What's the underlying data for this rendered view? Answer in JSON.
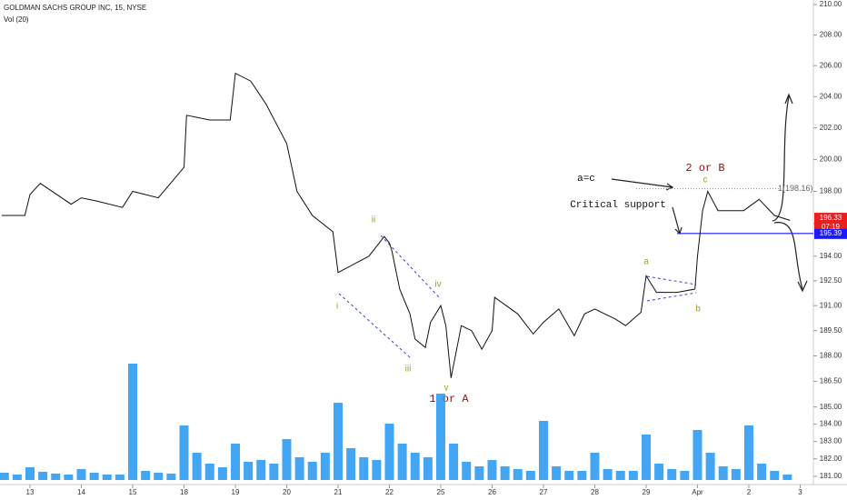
{
  "chart_data": {
    "type": "line",
    "title": "GOLDMAN SACHS GROUP INC, 15, NYSE",
    "indicator": "Vol (20)",
    "log_scale": true,
    "color": "#111111",
    "x": [
      -0.55,
      -0.1,
      0,
      0.2,
      0.8,
      1,
      1.3,
      1.8,
      2,
      2.5,
      3,
      3.05,
      3.5,
      3.9,
      4,
      4.3,
      4.6,
      5,
      5.2,
      5.5,
      5.9,
      6,
      6.3,
      6.6,
      6.9,
      7,
      7.05,
      7.2,
      7.4,
      7.5,
      7.7,
      7.8,
      8,
      8.1,
      8.2,
      8.4,
      8.6,
      8.8,
      9,
      9.05,
      9.5,
      9.8,
      10,
      10.3,
      10.6,
      10.8,
      11,
      11.4,
      11.6,
      11.9,
      12,
      12.2,
      12.6,
      12.95,
      13,
      13.1,
      13.2,
      13.4,
      13.9,
      14.2,
      14.5,
      14.8
    ],
    "values": [
      196.5,
      196.5,
      197.8,
      198.5,
      197.2,
      197.6,
      197.4,
      197,
      198,
      197.6,
      199.5,
      202.8,
      202.5,
      202.5,
      205.5,
      205,
      203.5,
      201,
      198,
      196.5,
      195.5,
      193,
      193.5,
      194,
      195.2,
      194.8,
      194.3,
      192,
      190.5,
      189,
      188.5,
      190,
      191,
      189.8,
      186.7,
      189.8,
      189.5,
      188.4,
      189.5,
      191.5,
      190.5,
      189.3,
      190,
      190.8,
      189.2,
      190.5,
      190.8,
      190.2,
      189.8,
      190.6,
      192.8,
      191.8,
      191.8,
      192,
      194,
      196.8,
      198,
      196.8,
      196.8,
      197.5,
      196.5,
      196.2
    ],
    "volume": {
      "color": "#2196f3",
      "x": [
        -0.5,
        -0.25,
        0,
        0.25,
        0.5,
        0.75,
        1,
        1.25,
        1.5,
        1.75,
        2,
        2.25,
        2.5,
        2.75,
        3,
        3.25,
        3.5,
        3.75,
        4,
        4.25,
        4.5,
        4.75,
        5,
        5.25,
        5.5,
        5.75,
        6,
        6.25,
        6.5,
        6.75,
        7,
        7.25,
        7.5,
        7.75,
        8,
        8.25,
        8.5,
        8.75,
        9,
        9.25,
        9.5,
        9.75,
        10,
        10.25,
        10.5,
        10.75,
        11,
        11.25,
        11.5,
        11.75,
        12,
        12.25,
        12.5,
        12.75,
        13,
        13.25,
        13.5,
        13.75,
        14,
        14.25,
        14.5,
        14.75
      ],
      "values": [
        8,
        6,
        14,
        9,
        7,
        6,
        12,
        8,
        6,
        6,
        128,
        10,
        8,
        7,
        60,
        30,
        18,
        14,
        40,
        20,
        22,
        18,
        45,
        25,
        20,
        30,
        85,
        35,
        25,
        22,
        62,
        40,
        30,
        25,
        95,
        40,
        20,
        15,
        22,
        15,
        12,
        10,
        65,
        15,
        10,
        10,
        30,
        12,
        10,
        10,
        50,
        18,
        12,
        10,
        55,
        30,
        15,
        12,
        60,
        18,
        10,
        6
      ]
    },
    "xlim": [
      -0.584,
      15.257
    ],
    "xticks": [
      {
        "value": 0,
        "label": "13"
      },
      {
        "value": 1,
        "label": "14"
      },
      {
        "value": 2,
        "label": "15"
      },
      {
        "value": 3,
        "label": "18"
      },
      {
        "value": 4,
        "label": "19"
      },
      {
        "value": 5,
        "label": "20"
      },
      {
        "value": 6,
        "label": "21"
      },
      {
        "value": 7,
        "label": "22"
      },
      {
        "value": 8,
        "label": "25"
      },
      {
        "value": 9,
        "label": "26"
      },
      {
        "value": 10,
        "label": "27"
      },
      {
        "value": 11,
        "label": "28"
      },
      {
        "value": 12,
        "label": "29"
      },
      {
        "value": 13,
        "label": "Apr"
      },
      {
        "value": 14,
        "label": "2"
      },
      {
        "value": 15,
        "label": "3"
      }
    ],
    "ylim": [
      181,
      210
    ],
    "yticks": [
      {
        "value": 210,
        "label": "210.00"
      },
      {
        "value": 208,
        "label": "208.00"
      },
      {
        "value": 206,
        "label": "206.00"
      },
      {
        "value": 204,
        "label": "204.00"
      },
      {
        "value": 202,
        "label": "202.00"
      },
      {
        "value": 200,
        "label": "200.00"
      },
      {
        "value": 198,
        "label": "198.00"
      },
      {
        "value": 196,
        "label": "196.00"
      },
      {
        "value": 194,
        "label": "194.00"
      },
      {
        "value": 192.5,
        "label": "192.50"
      },
      {
        "value": 191,
        "label": "191.00"
      },
      {
        "value": 189.5,
        "label": "189.50"
      },
      {
        "value": 188,
        "label": "188.00"
      },
      {
        "value": 186.5,
        "label": "186.50"
      },
      {
        "value": 185,
        "label": "185.00"
      },
      {
        "value": 184,
        "label": "184.00"
      },
      {
        "value": 183,
        "label": "183.00"
      },
      {
        "value": 182,
        "label": "182.00"
      },
      {
        "value": 181,
        "label": "181.00"
      }
    ],
    "last_price": 196.33,
    "last_color": "#e91e1e",
    "countdown": "07:19",
    "support": 195.39,
    "support_color": "#1a1aff",
    "fib_level": 198.16,
    "fib_label": "1(198.16)",
    "annotations": {
      "i": "i",
      "ii": "ii",
      "iii": "iii",
      "iv": "iv",
      "v": "v",
      "one_or_a": "1 or A",
      "a": "a",
      "b": "b",
      "c": "c",
      "two_or_b": "2 or B",
      "a_eq_c": "a=c",
      "critical": "Critical support"
    }
  }
}
